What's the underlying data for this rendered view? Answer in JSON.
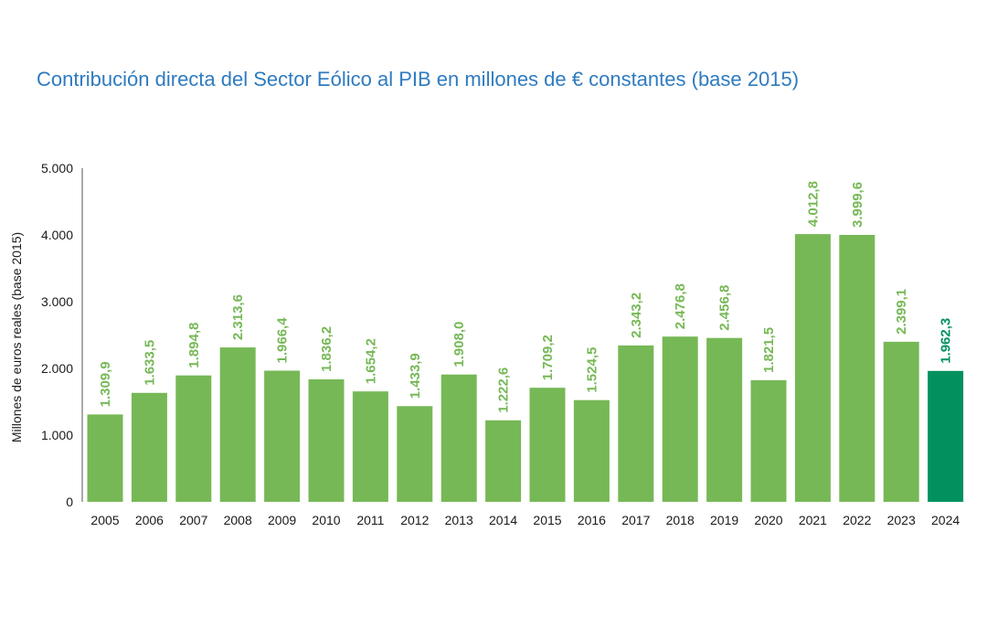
{
  "chart_data": {
    "type": "bar",
    "title": "Contribución directa del Sector Eólico al PIB en millones de € constantes (base 2015)",
    "xlabel": "",
    "ylabel": "Millones de euros reales (base 2015)",
    "ylim": [
      0,
      5000
    ],
    "y_ticks": [
      0,
      1000,
      2000,
      3000,
      4000,
      5000
    ],
    "y_tick_labels": [
      "0",
      "1.000",
      "2.000",
      "3.000",
      "4.000",
      "5.000"
    ],
    "grid": false,
    "categories": [
      "2005",
      "2006",
      "2007",
      "2008",
      "2009",
      "2010",
      "2011",
      "2012",
      "2013",
      "2014",
      "2015",
      "2016",
      "2017",
      "2018",
      "2019",
      "2020",
      "2021",
      "2022",
      "2023",
      "2024"
    ],
    "values": [
      1309.9,
      1633.5,
      1894.8,
      2313.6,
      1966.4,
      1836.2,
      1654.2,
      1433.9,
      1908.0,
      1222.6,
      1709.2,
      1524.5,
      2343.2,
      2476.8,
      2456.8,
      1821.5,
      4012.8,
      3999.6,
      2399.1,
      1962.3
    ],
    "data_labels": [
      "1.309,9",
      "1.633,5",
      "1.894,8",
      "2.313,6",
      "1.966,4",
      "1.836,2",
      "1.654,2",
      "1.433,9",
      "1.908,0",
      "1.222,6",
      "1.709,2",
      "1.524,5",
      "2.343,2",
      "2.476,8",
      "2.456,8",
      "1.821,5",
      "4.012,8",
      "3.999,6",
      "2.399,1",
      "1.962,3"
    ],
    "highlight_index": 19,
    "colors": {
      "bar": "#76b856",
      "bar_highlight": "#00915f",
      "label": "#76b856",
      "label_highlight": "#00915f",
      "axis": "#555555",
      "title": "#2f7bbf"
    }
  }
}
